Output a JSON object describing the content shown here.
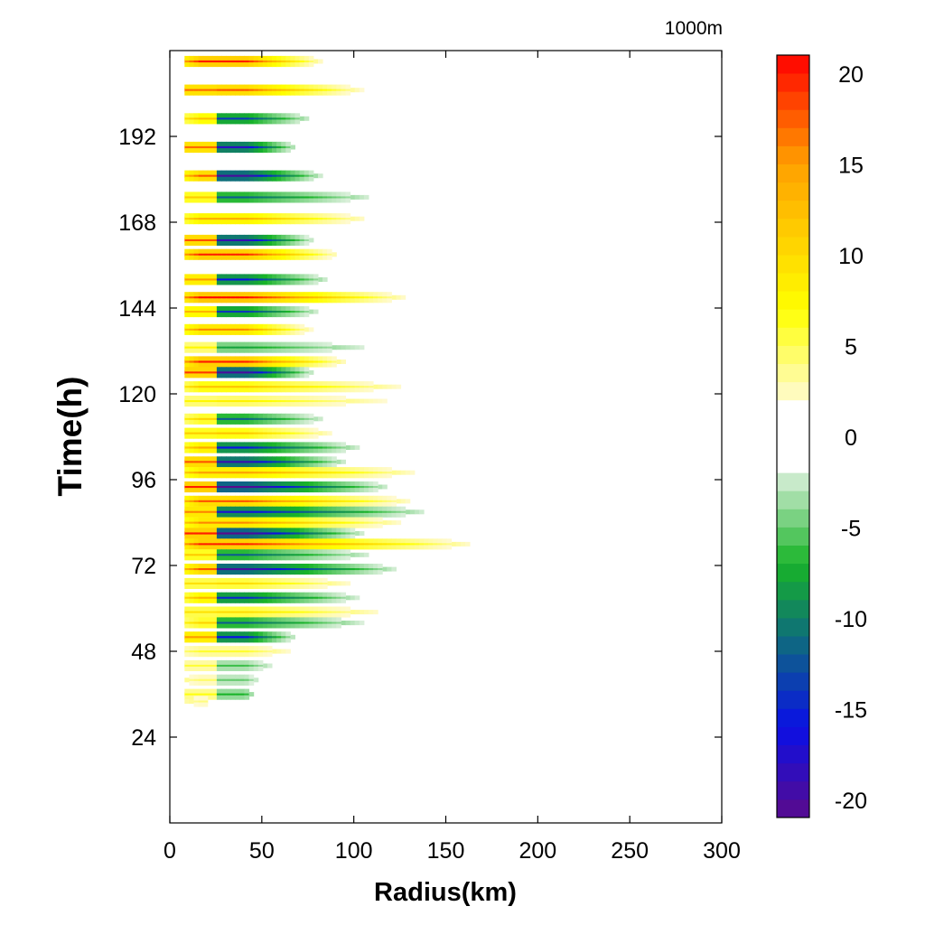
{
  "chart_data": {
    "type": "heatmap",
    "title": "",
    "level_label": "1000m",
    "xlabel": "Radius(km)",
    "ylabel": "Time(h)",
    "xlim": [
      0,
      300
    ],
    "ylim": [
      0,
      216
    ],
    "x_ticks": [
      0,
      50,
      100,
      150,
      200,
      250,
      300
    ],
    "y_ticks": [
      24,
      48,
      72,
      96,
      120,
      144,
      168,
      192
    ],
    "grid": false,
    "colorbar": {
      "min": -21,
      "max": 21,
      "step": 1,
      "ticks": [
        20,
        15,
        10,
        5,
        0,
        -5,
        -10,
        -15,
        -20
      ],
      "placement": "right",
      "colors": {
        "neg_deep": "#5a0a8c",
        "neg_blue": "#0a10e6",
        "neg_teal": "#0e6e7a",
        "neg_green": "#18b428",
        "neg_light": "#dcf0dc",
        "zero": "#ffffff",
        "pos_light": "#fffad2",
        "pos_yellow": "#ffff00",
        "pos_orange": "#ffa000",
        "pos_red": "#ff0000"
      }
    },
    "description_bands": [
      {
        "t": 213,
        "r_max": 85,
        "peak": 20
      },
      {
        "t": 205,
        "r_max": 110,
        "peak": 18
      },
      {
        "t": 197,
        "r_max": 80,
        "peak": -14
      },
      {
        "t": 189,
        "r_max": 70,
        "peak": -18
      },
      {
        "t": 181,
        "r_max": 85,
        "peak": -20
      },
      {
        "t": 175,
        "r_max": 120,
        "peak": -12
      },
      {
        "t": 169,
        "r_max": 115,
        "peak": 14
      },
      {
        "t": 163,
        "r_max": 80,
        "peak": -19
      },
      {
        "t": 159,
        "r_max": 95,
        "peak": 20
      },
      {
        "t": 152,
        "r_max": 90,
        "peak": -16
      },
      {
        "t": 147,
        "r_max": 135,
        "peak": 21
      },
      {
        "t": 143,
        "r_max": 85,
        "peak": -14
      },
      {
        "t": 138,
        "r_max": 80,
        "peak": 16
      },
      {
        "t": 133,
        "r_max": 125,
        "peak": -8
      },
      {
        "t": 129,
        "r_max": 100,
        "peak": 20
      },
      {
        "t": 126,
        "r_max": 80,
        "peak": -20
      },
      {
        "t": 122,
        "r_max": 140,
        "peak": 12
      },
      {
        "t": 118,
        "r_max": 140,
        "peak": 8
      },
      {
        "t": 113,
        "r_max": 90,
        "peak": -12
      },
      {
        "t": 109,
        "r_max": 95,
        "peak": 12
      },
      {
        "t": 105,
        "r_max": 110,
        "peak": -16
      },
      {
        "t": 101,
        "r_max": 100,
        "peak": -19
      },
      {
        "t": 98,
        "r_max": 145,
        "peak": 15
      },
      {
        "t": 94,
        "r_max": 125,
        "peak": -21
      },
      {
        "t": 90,
        "r_max": 140,
        "peak": 18
      },
      {
        "t": 87,
        "r_max": 150,
        "peak": -17
      },
      {
        "t": 84,
        "r_max": 135,
        "peak": 16
      },
      {
        "t": 81,
        "r_max": 110,
        "peak": -21
      },
      {
        "t": 78,
        "r_max": 175,
        "peak": 20
      },
      {
        "t": 75,
        "r_max": 120,
        "peak": -12
      },
      {
        "t": 71,
        "r_max": 130,
        "peak": -20
      },
      {
        "t": 67,
        "r_max": 110,
        "peak": 10
      },
      {
        "t": 63,
        "r_max": 110,
        "peak": -15
      },
      {
        "t": 59,
        "r_max": 130,
        "peak": 10
      },
      {
        "t": 56,
        "r_max": 115,
        "peak": -12
      },
      {
        "t": 52,
        "r_max": 70,
        "peak": -16
      },
      {
        "t": 48,
        "r_max": 75,
        "peak": 6
      },
      {
        "t": 44,
        "r_max": 60,
        "peak": -6
      },
      {
        "t": 40,
        "r_max": 50,
        "peak": -5
      },
      {
        "t": 36,
        "r_max": 45,
        "peak": -7
      },
      {
        "t": 34,
        "r_max": 20,
        "peak": 4
      }
    ]
  }
}
